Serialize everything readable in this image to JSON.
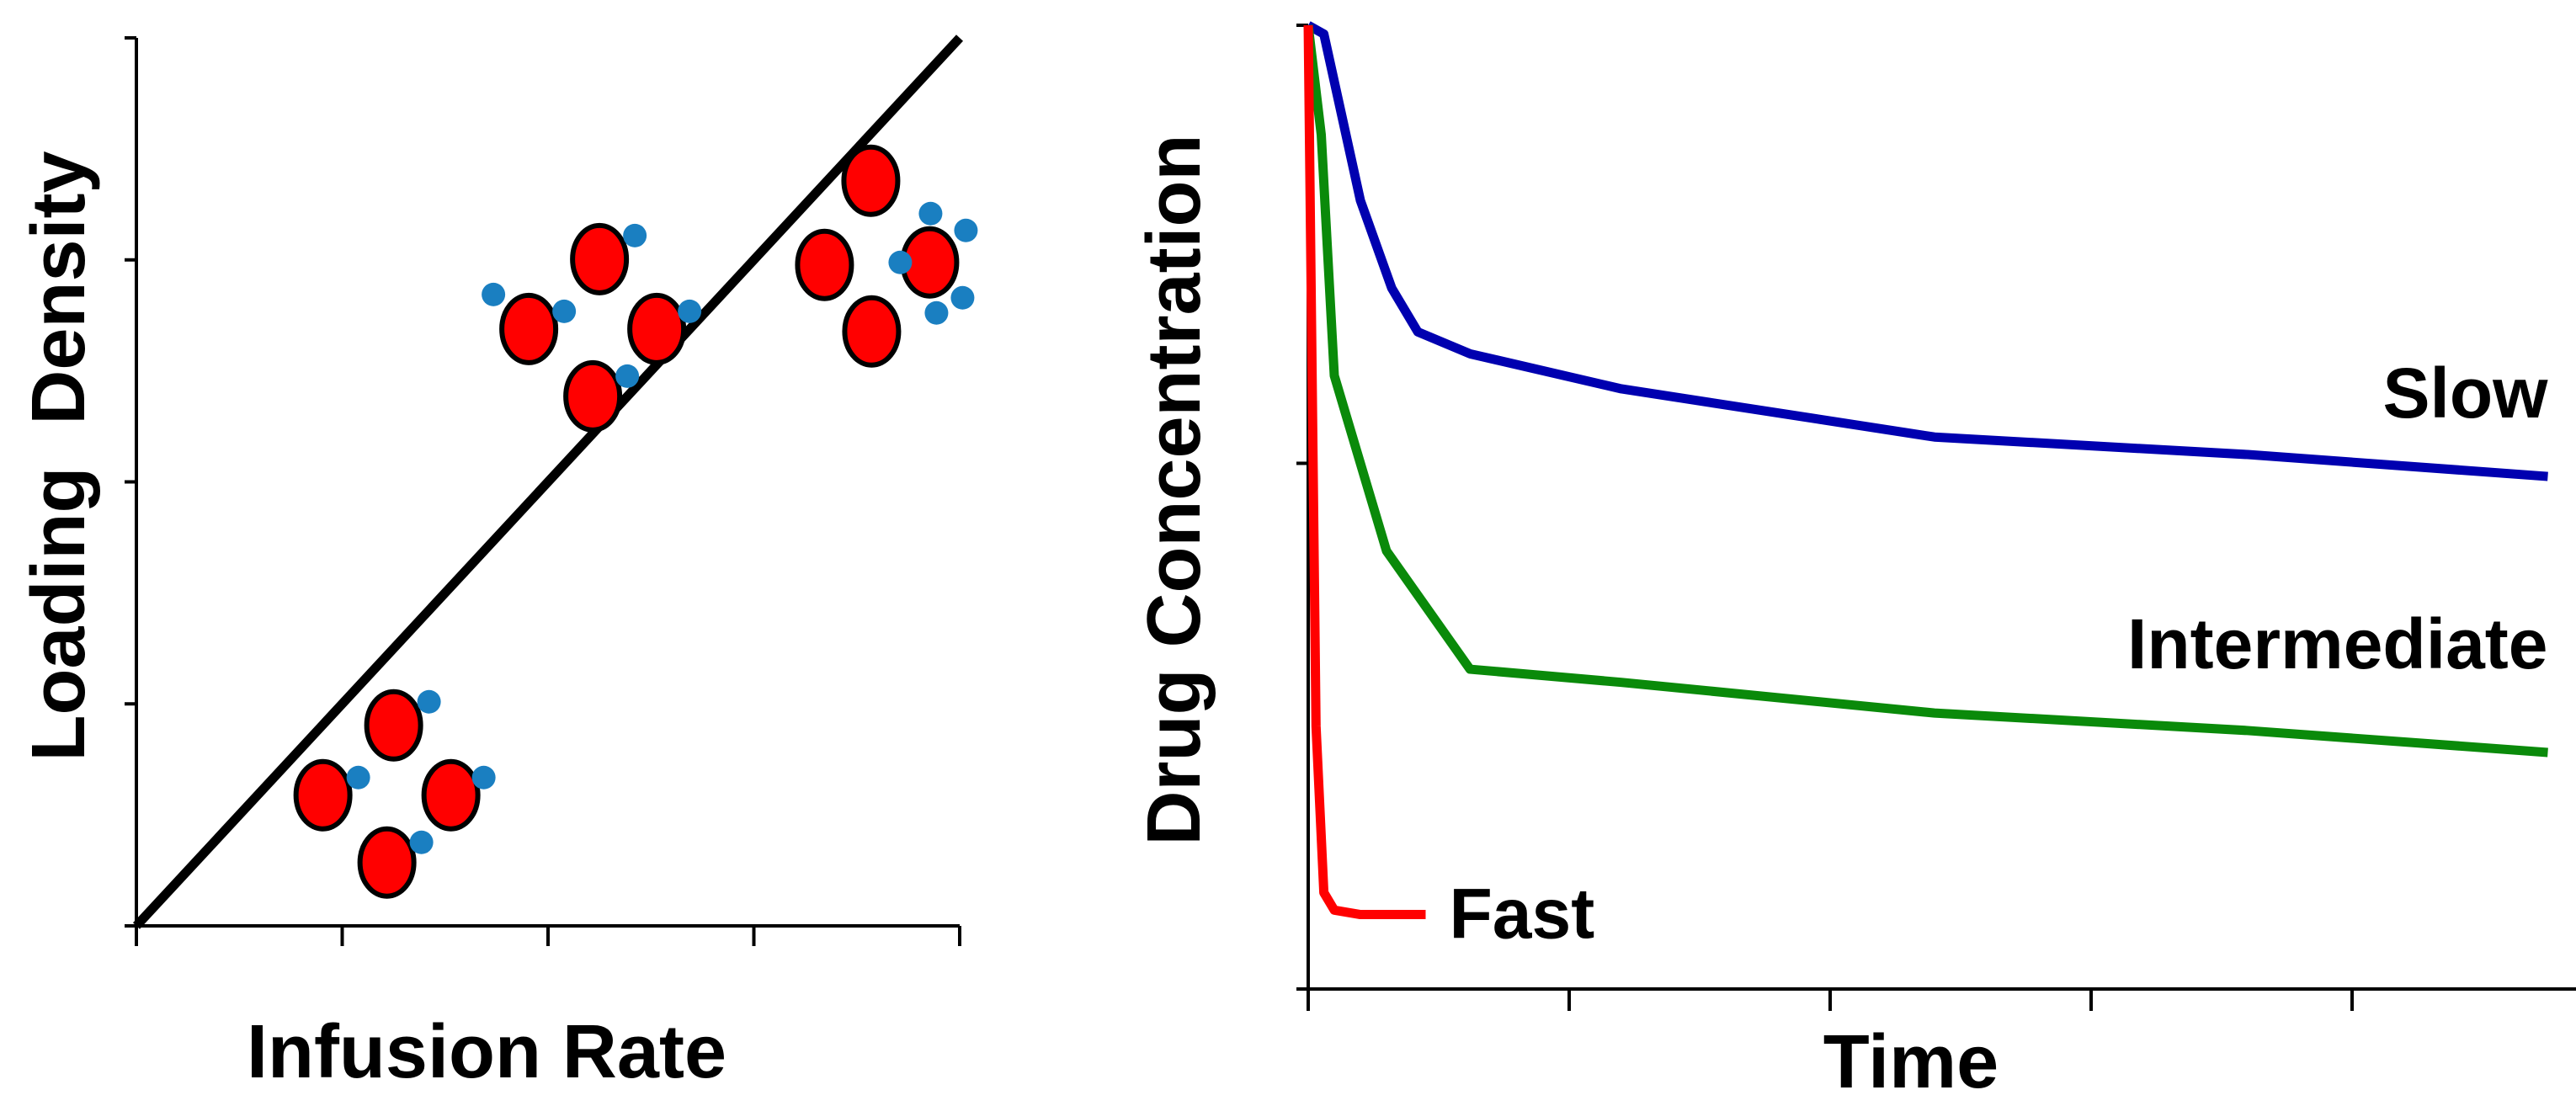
{
  "chart_data": [
    {
      "type": "line",
      "title": "",
      "xlabel": "Infusion Rate",
      "ylabel": "Loading  Density",
      "xlim": [
        0,
        4
      ],
      "ylim": [
        0,
        4
      ],
      "x_ticks": [
        0,
        1,
        2,
        3,
        4
      ],
      "y_ticks": [
        0,
        1,
        2,
        3,
        4
      ],
      "tick_labels_shown": false,
      "grid": false,
      "series": [
        {
          "name": "loading-density-trend",
          "color": "#000000",
          "x": [
            0,
            4
          ],
          "y": [
            0,
            4
          ]
        }
      ],
      "annotations": [
        {
          "name": "low-loading-cluster",
          "x": 1.25,
          "y": 0.6,
          "icon": "particle-cluster-sparse-icon",
          "particle_color": "#ff0000",
          "drug_color": "#1a7fc1"
        },
        {
          "name": "mid-loading-cluster",
          "x": 2.25,
          "y": 2.7,
          "icon": "particle-cluster-sparse-icon",
          "particle_color": "#ff0000",
          "drug_color": "#1a7fc1"
        },
        {
          "name": "high-loading-cluster",
          "x": 3.65,
          "y": 3.0,
          "icon": "particle-cluster-dense-icon",
          "particle_color": "#ff0000",
          "drug_color": "#1a7fc1"
        }
      ]
    },
    {
      "type": "line",
      "title": "",
      "xlabel": "Time",
      "ylabel": "Drug Concentration",
      "xlim": [
        0,
        5
      ],
      "ylim": [
        0,
        2.2
      ],
      "x_ticks": [
        0,
        1,
        2,
        3,
        4,
        5
      ],
      "y_ticks": [
        0,
        1.2,
        2.2
      ],
      "tick_labels_shown": false,
      "grid": false,
      "series": [
        {
          "name": "Slow",
          "color": "#0000b0",
          "x": [
            0,
            0.06,
            0.2,
            0.32,
            0.42,
            0.62,
            1.2,
            2.4,
            3.6,
            4.75
          ],
          "y": [
            2.2,
            2.18,
            1.8,
            1.6,
            1.5,
            1.45,
            1.37,
            1.26,
            1.22,
            1.17
          ]
        },
        {
          "name": "Intermediate",
          "color": "#0a8a0a",
          "x": [
            0,
            0.05,
            0.1,
            0.3,
            0.62,
            1.2,
            2.4,
            3.6,
            4.75
          ],
          "y": [
            2.2,
            1.95,
            1.4,
            1.0,
            0.73,
            0.7,
            0.63,
            0.59,
            0.54
          ]
        },
        {
          "name": "Fast",
          "color": "#ff0000",
          "x": [
            0,
            0.03,
            0.06,
            0.1,
            0.2,
            0.45
          ],
          "y": [
            2.2,
            0.6,
            0.22,
            0.18,
            0.17,
            0.17
          ]
        }
      ]
    }
  ]
}
